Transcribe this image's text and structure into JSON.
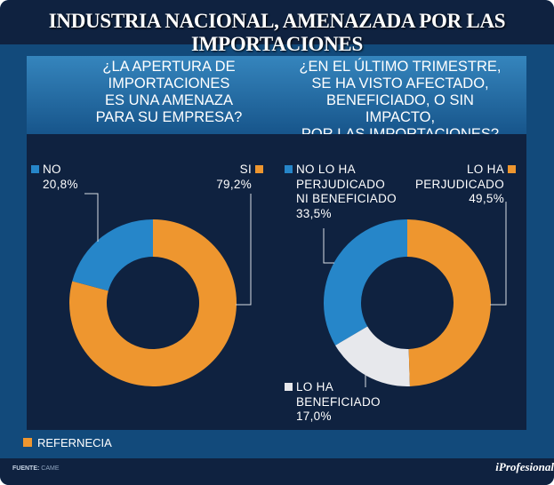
{
  "title": "INDUSTRIA NACIONAL, AMENAZADA POR LAS IMPORTACIONES",
  "chart_data": [
    {
      "type": "pie",
      "donut": true,
      "title": "¿LA APERTURA DE IMPORTACIONES ES UNA AMENAZA PARA SU EMPRESA?",
      "categories": [
        "NO",
        "SI"
      ],
      "values": [
        20.8,
        79.2
      ],
      "labels": [
        "20,8%",
        "79,2%"
      ],
      "colors": [
        "#2686c9",
        "#ee962f"
      ]
    },
    {
      "type": "pie",
      "donut": true,
      "title": "¿EN EL ÚLTIMO TRIMESTRE, SE HA VISTO AFECTADO, BENEFICIADO, O SIN IMPACTO, POR LAS IMPORTACIONES?",
      "categories": [
        "LO HA PERJUDICADO",
        "LO HA BENEFICIADO",
        "NO LO HA PERJUDICADO NI BENEFICIADO"
      ],
      "values": [
        49.5,
        17.0,
        33.5
      ],
      "labels": [
        "49,5%",
        "17,0%",
        "33,5%"
      ],
      "colors": [
        "#ee962f",
        "#e7e8ec",
        "#2686c9"
      ]
    }
  ],
  "q1": [
    "¿LA APERTURA DE",
    "IMPORTACIONES",
    "ES UNA AMENAZA",
    "PARA SU EMPRESA?"
  ],
  "q2": [
    "¿EN EL ÚLTIMO TRIMESTRE,",
    "SE HA VISTO AFECTADO,",
    "BENEFICIADO, O SIN IMPACTO,",
    "POR LAS IMPORTACIONES?"
  ],
  "l1": {
    "no": "NO",
    "no_pct": "20,8%",
    "si": "SI",
    "si_pct": "79,2%"
  },
  "l2": {
    "neutral": [
      "NO LO HA",
      "PERJUDICADO",
      "NI BENEFICIADO"
    ],
    "neutral_pct": "33,5%",
    "hurt": [
      "LO HA",
      "PERJUDICADO"
    ],
    "hurt_pct": "49,5%",
    "benefit": [
      "LO HA",
      "BENEFICIADO"
    ],
    "benefit_pct": "17,0%"
  },
  "legend": "REFERNECIA",
  "footer": {
    "source_label": "FUENTE:",
    "source": "CAME",
    "logo": "iProfesional"
  }
}
